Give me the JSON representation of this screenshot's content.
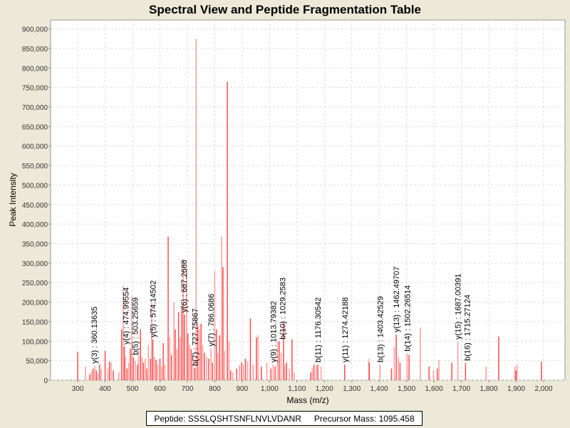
{
  "chart_data": {
    "type": "bar",
    "title": "Spectral View and Peptide Fragmentation Table",
    "xlabel": "Mass (m/z)",
    "ylabel": "Peak Intensity",
    "xlim": [
      201,
      2078
    ],
    "ylim": [
      0,
      923000
    ],
    "xticks": [
      300,
      400,
      500,
      600,
      700,
      800,
      900,
      1000,
      1100,
      1200,
      1300,
      1400,
      1500,
      1600,
      1700,
      1800,
      1900,
      2000
    ],
    "xtick_labels": [
      "300",
      "400",
      "500",
      "600",
      "700",
      "800",
      "900",
      "1,000",
      "1,100",
      "1,200",
      "1,300",
      "1,400",
      "1,500",
      "1,600",
      "1,700",
      "1,800",
      "1,900",
      "2,000"
    ],
    "yticks": [
      0,
      50000,
      100000,
      150000,
      200000,
      250000,
      300000,
      350000,
      400000,
      450000,
      500000,
      550000,
      600000,
      650000,
      700000,
      750000,
      800000,
      850000,
      900000
    ],
    "ytick_labels": [
      "0",
      "50,000",
      "100,000",
      "150,000",
      "200,000",
      "250,000",
      "300,000",
      "350,000",
      "400,000",
      "450,000",
      "500,000",
      "550,000",
      "600,000",
      "650,000",
      "700,000",
      "750,000",
      "800,000",
      "850,000",
      "900,000"
    ],
    "grid": true,
    "peak_colors": [
      "#ff4d4d",
      "#ff9a9a"
    ],
    "peaks": [
      [
        300,
        72000
      ],
      [
        328,
        35000
      ],
      [
        344,
        15000
      ],
      [
        350,
        22000
      ],
      [
        356,
        30000
      ],
      [
        362,
        37000
      ],
      [
        368,
        25000
      ],
      [
        374,
        18000
      ],
      [
        380,
        40000
      ],
      [
        386,
        28000
      ],
      [
        400,
        75000
      ],
      [
        410,
        30000
      ],
      [
        416,
        48000
      ],
      [
        422,
        45000
      ],
      [
        430,
        25000
      ],
      [
        450,
        20000
      ],
      [
        460,
        130000
      ],
      [
        466,
        242000
      ],
      [
        470,
        86000
      ],
      [
        474,
        60000
      ],
      [
        480,
        30000
      ],
      [
        486,
        45000
      ],
      [
        492,
        80000
      ],
      [
        497,
        215000
      ],
      [
        503,
        59000
      ],
      [
        510,
        50000
      ],
      [
        518,
        40000
      ],
      [
        522,
        75000
      ],
      [
        529,
        130000
      ],
      [
        535,
        60000
      ],
      [
        540,
        45000
      ],
      [
        546,
        55000
      ],
      [
        552,
        30000
      ],
      [
        558,
        90000
      ],
      [
        565,
        55000
      ],
      [
        570,
        200000
      ],
      [
        574,
        104000
      ],
      [
        580,
        60000
      ],
      [
        586,
        52000
      ],
      [
        592,
        40000
      ],
      [
        600,
        55000
      ],
      [
        606,
        35000
      ],
      [
        612,
        95000
      ],
      [
        618,
        40000
      ],
      [
        630,
        368000
      ],
      [
        636,
        110000
      ],
      [
        642,
        65000
      ],
      [
        651,
        200000
      ],
      [
        656,
        130000
      ],
      [
        662,
        80000
      ],
      [
        668,
        175000
      ],
      [
        674,
        110000
      ],
      [
        680,
        190000
      ],
      [
        685,
        310000
      ],
      [
        689,
        168000
      ],
      [
        697,
        285000
      ],
      [
        702,
        120000
      ],
      [
        708,
        90000
      ],
      [
        714,
        80000
      ],
      [
        720,
        60000
      ],
      [
        727,
        31000
      ],
      [
        732,
        875000
      ],
      [
        738,
        140000
      ],
      [
        744,
        130000
      ],
      [
        750,
        145000
      ],
      [
        756,
        90000
      ],
      [
        762,
        70000
      ],
      [
        770,
        60000
      ],
      [
        778,
        55000
      ],
      [
        786,
        81000
      ],
      [
        792,
        45000
      ],
      [
        800,
        280000
      ],
      [
        806,
        130000
      ],
      [
        812,
        70000
      ],
      [
        818,
        115000
      ],
      [
        825,
        368000
      ],
      [
        830,
        290000
      ],
      [
        836,
        75000
      ],
      [
        846,
        765000
      ],
      [
        852,
        100000
      ],
      [
        858,
        25000
      ],
      [
        866,
        20000
      ],
      [
        880,
        30000
      ],
      [
        890,
        38000
      ],
      [
        898,
        45000
      ],
      [
        905,
        40000
      ],
      [
        912,
        55000
      ],
      [
        920,
        48000
      ],
      [
        930,
        158000
      ],
      [
        940,
        40000
      ],
      [
        952,
        110000
      ],
      [
        958,
        115000
      ],
      [
        970,
        35000
      ],
      [
        990,
        45000
      ],
      [
        1005,
        30000
      ],
      [
        1013,
        40000
      ],
      [
        1020,
        35000
      ],
      [
        1029,
        99000
      ],
      [
        1035,
        100000
      ],
      [
        1042,
        70000
      ],
      [
        1051,
        148000
      ],
      [
        1056,
        40000
      ],
      [
        1062,
        45000
      ],
      [
        1072,
        30000
      ],
      [
        1082,
        105000
      ],
      [
        1090,
        20000
      ],
      [
        1150,
        20000
      ],
      [
        1156,
        30000
      ],
      [
        1162,
        40000
      ],
      [
        1170,
        38000
      ],
      [
        1176,
        40000
      ],
      [
        1188,
        35000
      ],
      [
        1274,
        40000
      ],
      [
        1362,
        55000
      ],
      [
        1364,
        45000
      ],
      [
        1403,
        40000
      ],
      [
        1445,
        30000
      ],
      [
        1455,
        85000
      ],
      [
        1462,
        117000
      ],
      [
        1470,
        60000
      ],
      [
        1476,
        45000
      ],
      [
        1502,
        68000
      ],
      [
        1509,
        65000
      ],
      [
        1550,
        135000
      ],
      [
        1582,
        35000
      ],
      [
        1598,
        25000
      ],
      [
        1612,
        30000
      ],
      [
        1618,
        52000
      ],
      [
        1665,
        45000
      ],
      [
        1687,
        99000
      ],
      [
        1715,
        44000
      ],
      [
        1790,
        35000
      ],
      [
        1836,
        112000
      ],
      [
        1895,
        35000
      ],
      [
        1899,
        25000
      ],
      [
        1903,
        40000
      ],
      [
        1992,
        48000
      ]
    ],
    "annotations": [
      {
        "label": "y(3) : 360.13635",
        "mass": 360.13635,
        "intensity": 37000
      },
      {
        "label": "y(4) : 474.99554",
        "mass": 474.99554,
        "intensity": 86000
      },
      {
        "label": "b(5) : 503.25659",
        "mass": 503.25659,
        "intensity": 59000
      },
      {
        "label": "y(5) : 574.14502",
        "mass": 574.14502,
        "intensity": 104000
      },
      {
        "label": "y(6) : 687.2688",
        "mass": 687.2688,
        "intensity": 168000
      },
      {
        "label": "b(7) : 727.75867",
        "mass": 727.75867,
        "intensity": 31000
      },
      {
        "label": "y(7) : 786.0686",
        "mass": 786.0686,
        "intensity": 81000
      },
      {
        "label": "y(9) : 1013.79382",
        "mass": 1013.79382,
        "intensity": 40000
      },
      {
        "label": "b(10) : 1029.2583",
        "mass": 1029.2583,
        "intensity": 99000
      },
      {
        "label": "b(11) : 1176.30542",
        "mass": 1176.30542,
        "intensity": 40000
      },
      {
        "label": "y(11) : 1274.42188",
        "mass": 1274.42188,
        "intensity": 40000
      },
      {
        "label": "b(13) : 1403.42529",
        "mass": 1403.42529,
        "intensity": 40000
      },
      {
        "label": "y(13) : 1462.49707",
        "mass": 1462.49707,
        "intensity": 117000
      },
      {
        "label": "b(14) : 1502.26514",
        "mass": 1502.26514,
        "intensity": 68000
      },
      {
        "label": "y(15) : 1687.00391",
        "mass": 1687.00391,
        "intensity": 99000
      },
      {
        "label": "b(16) : 1715.27124",
        "mass": 1715.27124,
        "intensity": 44000
      }
    ]
  },
  "footer": {
    "peptide": "Peptide: SSSLQSHTSNFLNVLVDANR",
    "precursor": "Precursor Mass: 1095.458"
  }
}
